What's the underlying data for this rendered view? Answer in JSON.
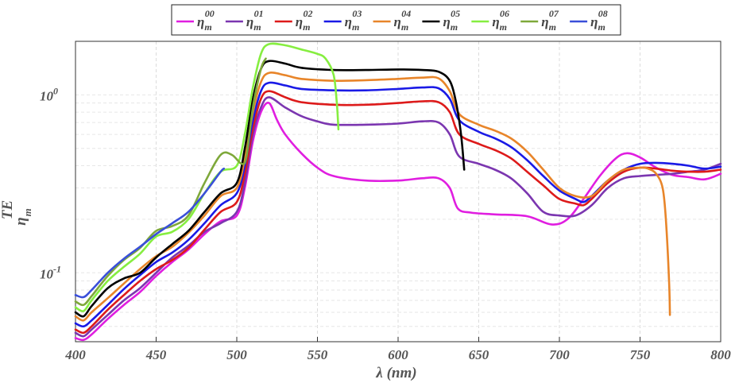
{
  "chart_data": {
    "type": "line",
    "title": "",
    "xlabel": "λ (nm)",
    "ylabel": {
      "base": "η",
      "sub": "m",
      "sup": "TE"
    },
    "x_ticks": [
      "400",
      "450",
      "500",
      "550",
      "600",
      "650",
      "700",
      "750",
      "800"
    ],
    "y_ticks": [
      {
        "base": "10",
        "exp": "-1",
        "value": 0.1
      },
      {
        "base": "10",
        "exp": "0",
        "value": 1
      }
    ],
    "xlim": [
      400,
      800
    ],
    "ylim": [
      0.041,
      2.0
    ],
    "yscale": "log",
    "grid": true,
    "legend_position": "top",
    "series": [
      {
        "name": "η_m^00",
        "label_base": "η",
        "label_sub": "m",
        "label_sup": "00",
        "color": "#e01ee0",
        "points": [
          [
            400,
            0.043
          ],
          [
            405,
            0.042
          ],
          [
            410,
            0.045
          ],
          [
            420,
            0.055
          ],
          [
            430,
            0.066
          ],
          [
            440,
            0.078
          ],
          [
            450,
            0.096
          ],
          [
            460,
            0.115
          ],
          [
            470,
            0.135
          ],
          [
            480,
            0.165
          ],
          [
            490,
            0.195
          ],
          [
            500,
            0.21
          ],
          [
            505,
            0.3
          ],
          [
            510,
            0.55
          ],
          [
            515,
            0.8
          ],
          [
            520,
            0.9
          ],
          [
            525,
            0.72
          ],
          [
            530,
            0.6
          ],
          [
            540,
            0.47
          ],
          [
            550,
            0.39
          ],
          [
            560,
            0.35
          ],
          [
            580,
            0.33
          ],
          [
            600,
            0.33
          ],
          [
            615,
            0.34
          ],
          [
            625,
            0.34
          ],
          [
            632,
            0.3
          ],
          [
            637,
            0.23
          ],
          [
            645,
            0.218
          ],
          [
            660,
            0.213
          ],
          [
            680,
            0.208
          ],
          [
            695,
            0.187
          ],
          [
            705,
            0.2
          ],
          [
            715,
            0.26
          ],
          [
            725,
            0.35
          ],
          [
            735,
            0.44
          ],
          [
            742,
            0.47
          ],
          [
            750,
            0.445
          ],
          [
            760,
            0.39
          ],
          [
            770,
            0.355
          ],
          [
            780,
            0.345
          ],
          [
            790,
            0.335
          ],
          [
            800,
            0.36
          ]
        ]
      },
      {
        "name": "η_m^01",
        "label_base": "η",
        "label_sub": "m",
        "label_sup": "01",
        "color": "#7b36b0",
        "points": [
          [
            400,
            0.046
          ],
          [
            405,
            0.044
          ],
          [
            410,
            0.048
          ],
          [
            420,
            0.058
          ],
          [
            430,
            0.07
          ],
          [
            440,
            0.082
          ],
          [
            450,
            0.1
          ],
          [
            460,
            0.122
          ],
          [
            470,
            0.142
          ],
          [
            480,
            0.17
          ],
          [
            490,
            0.19
          ],
          [
            500,
            0.22
          ],
          [
            505,
            0.32
          ],
          [
            510,
            0.6
          ],
          [
            515,
            0.85
          ],
          [
            520,
            0.97
          ],
          [
            530,
            0.85
          ],
          [
            540,
            0.76
          ],
          [
            550,
            0.71
          ],
          [
            560,
            0.68
          ],
          [
            580,
            0.68
          ],
          [
            600,
            0.69
          ],
          [
            615,
            0.71
          ],
          [
            625,
            0.7
          ],
          [
            632,
            0.6
          ],
          [
            638,
            0.45
          ],
          [
            650,
            0.41
          ],
          [
            660,
            0.38
          ],
          [
            670,
            0.34
          ],
          [
            680,
            0.28
          ],
          [
            690,
            0.22
          ],
          [
            700,
            0.21
          ],
          [
            710,
            0.21
          ],
          [
            720,
            0.24
          ],
          [
            730,
            0.3
          ],
          [
            740,
            0.34
          ],
          [
            750,
            0.35
          ],
          [
            760,
            0.355
          ],
          [
            770,
            0.36
          ],
          [
            780,
            0.37
          ],
          [
            790,
            0.38
          ],
          [
            800,
            0.41
          ]
        ]
      },
      {
        "name": "η_m^02",
        "label_base": "η",
        "label_sub": "m",
        "label_sup": "02",
        "color": "#dd1a1a",
        "points": [
          [
            400,
            0.048
          ],
          [
            405,
            0.046
          ],
          [
            410,
            0.05
          ],
          [
            420,
            0.062
          ],
          [
            430,
            0.075
          ],
          [
            440,
            0.09
          ],
          [
            450,
            0.105
          ],
          [
            460,
            0.118
          ],
          [
            470,
            0.138
          ],
          [
            480,
            0.175
          ],
          [
            490,
            0.22
          ],
          [
            500,
            0.25
          ],
          [
            505,
            0.36
          ],
          [
            510,
            0.65
          ],
          [
            515,
            0.95
          ],
          [
            520,
            1.05
          ],
          [
            530,
            0.97
          ],
          [
            540,
            0.91
          ],
          [
            560,
            0.88
          ],
          [
            580,
            0.88
          ],
          [
            600,
            0.9
          ],
          [
            615,
            0.92
          ],
          [
            625,
            0.91
          ],
          [
            632,
            0.8
          ],
          [
            638,
            0.6
          ],
          [
            650,
            0.53
          ],
          [
            660,
            0.49
          ],
          [
            670,
            0.44
          ],
          [
            680,
            0.37
          ],
          [
            690,
            0.31
          ],
          [
            700,
            0.26
          ],
          [
            710,
            0.245
          ],
          [
            715,
            0.24
          ],
          [
            720,
            0.26
          ],
          [
            730,
            0.32
          ],
          [
            740,
            0.37
          ],
          [
            750,
            0.39
          ],
          [
            760,
            0.385
          ],
          [
            770,
            0.375
          ],
          [
            780,
            0.37
          ],
          [
            790,
            0.37
          ],
          [
            800,
            0.38
          ]
        ]
      },
      {
        "name": "η_m^03",
        "label_base": "η",
        "label_sub": "m",
        "label_sup": "03",
        "color": "#1a1ae6",
        "points": [
          [
            400,
            0.052
          ],
          [
            405,
            0.05
          ],
          [
            410,
            0.054
          ],
          [
            420,
            0.066
          ],
          [
            430,
            0.081
          ],
          [
            440,
            0.097
          ],
          [
            450,
            0.115
          ],
          [
            460,
            0.13
          ],
          [
            470,
            0.153
          ],
          [
            480,
            0.19
          ],
          [
            490,
            0.24
          ],
          [
            500,
            0.28
          ],
          [
            505,
            0.4
          ],
          [
            510,
            0.72
          ],
          [
            515,
            1.05
          ],
          [
            520,
            1.17
          ],
          [
            530,
            1.13
          ],
          [
            540,
            1.08
          ],
          [
            560,
            1.06
          ],
          [
            580,
            1.06
          ],
          [
            600,
            1.08
          ],
          [
            615,
            1.1
          ],
          [
            625,
            1.09
          ],
          [
            632,
            0.95
          ],
          [
            638,
            0.72
          ],
          [
            650,
            0.62
          ],
          [
            660,
            0.57
          ],
          [
            670,
            0.51
          ],
          [
            680,
            0.43
          ],
          [
            690,
            0.35
          ],
          [
            700,
            0.29
          ],
          [
            710,
            0.26
          ],
          [
            715,
            0.25
          ],
          [
            720,
            0.27
          ],
          [
            730,
            0.33
          ],
          [
            740,
            0.38
          ],
          [
            750,
            0.41
          ],
          [
            760,
            0.415
          ],
          [
            770,
            0.41
          ],
          [
            780,
            0.4
          ],
          [
            790,
            0.385
          ],
          [
            800,
            0.395
          ]
        ]
      },
      {
        "name": "η_m^04",
        "label_base": "η",
        "label_sub": "m",
        "label_sup": "04",
        "color": "#e8852a",
        "points": [
          [
            400,
            0.057
          ],
          [
            405,
            0.054
          ],
          [
            410,
            0.06
          ],
          [
            420,
            0.072
          ],
          [
            430,
            0.087
          ],
          [
            440,
            0.105
          ],
          [
            450,
            0.124
          ],
          [
            460,
            0.14
          ],
          [
            470,
            0.168
          ],
          [
            480,
            0.21
          ],
          [
            490,
            0.27
          ],
          [
            500,
            0.3
          ],
          [
            505,
            0.44
          ],
          [
            510,
            0.8
          ],
          [
            515,
            1.18
          ],
          [
            520,
            1.33
          ],
          [
            530,
            1.29
          ],
          [
            540,
            1.23
          ],
          [
            560,
            1.2
          ],
          [
            580,
            1.21
          ],
          [
            600,
            1.23
          ],
          [
            615,
            1.25
          ],
          [
            625,
            1.24
          ],
          [
            632,
            1.05
          ],
          [
            638,
            0.78
          ],
          [
            650,
            0.68
          ],
          [
            660,
            0.63
          ],
          [
            670,
            0.57
          ],
          [
            680,
            0.48
          ],
          [
            690,
            0.38
          ],
          [
            700,
            0.3
          ],
          [
            710,
            0.27
          ],
          [
            720,
            0.27
          ],
          [
            730,
            0.33
          ],
          [
            740,
            0.38
          ],
          [
            750,
            0.39
          ],
          [
            755,
            0.385
          ],
          [
            760,
            0.36
          ],
          [
            764,
            0.3
          ],
          [
            766,
            0.2
          ],
          [
            768,
            0.09
          ],
          [
            768.5,
            0.058
          ]
        ]
      },
      {
        "name": "η_m^05",
        "label_base": "η",
        "label_sub": "m",
        "label_sup": "05",
        "color": "#000000",
        "points": [
          [
            400,
            0.06
          ],
          [
            405,
            0.057
          ],
          [
            410,
            0.065
          ],
          [
            420,
            0.082
          ],
          [
            430,
            0.093
          ],
          [
            440,
            0.1
          ],
          [
            450,
            0.122
          ],
          [
            460,
            0.145
          ],
          [
            470,
            0.172
          ],
          [
            480,
            0.22
          ],
          [
            490,
            0.28
          ],
          [
            500,
            0.32
          ],
          [
            505,
            0.5
          ],
          [
            510,
            0.95
          ],
          [
            515,
            1.4
          ],
          [
            520,
            1.55
          ],
          [
            530,
            1.5
          ],
          [
            540,
            1.42
          ],
          [
            560,
            1.38
          ],
          [
            580,
            1.38
          ],
          [
            600,
            1.39
          ],
          [
            615,
            1.38
          ],
          [
            625,
            1.35
          ],
          [
            632,
            1.2
          ],
          [
            636,
            0.9
          ],
          [
            639,
            0.6
          ],
          [
            641,
            0.38
          ]
        ]
      },
      {
        "name": "η_m^06",
        "label_base": "η",
        "label_sub": "m",
        "label_sup": "06",
        "color": "#86ee40",
        "points": [
          [
            400,
            0.064
          ],
          [
            405,
            0.061
          ],
          [
            410,
            0.07
          ],
          [
            420,
            0.09
          ],
          [
            430,
            0.108
          ],
          [
            440,
            0.128
          ],
          [
            450,
            0.16
          ],
          [
            460,
            0.17
          ],
          [
            470,
            0.2
          ],
          [
            480,
            0.28
          ],
          [
            490,
            0.37
          ],
          [
            500,
            0.4
          ],
          [
            505,
            0.6
          ],
          [
            510,
            1.1
          ],
          [
            515,
            1.7
          ],
          [
            520,
            1.93
          ],
          [
            530,
            1.9
          ],
          [
            540,
            1.8
          ],
          [
            550,
            1.7
          ],
          [
            555,
            1.6
          ],
          [
            560,
            1.3
          ],
          [
            562,
            0.9
          ],
          [
            563,
            0.64
          ]
        ]
      },
      {
        "name": "η_m^07",
        "label_base": "η",
        "label_sub": "m",
        "label_sup": "07",
        "color": "#7ea83a",
        "points": [
          [
            400,
            0.069
          ],
          [
            405,
            0.066
          ],
          [
            410,
            0.074
          ],
          [
            420,
            0.096
          ],
          [
            430,
            0.118
          ],
          [
            440,
            0.138
          ],
          [
            450,
            0.172
          ],
          [
            460,
            0.183
          ],
          [
            470,
            0.21
          ],
          [
            480,
            0.32
          ],
          [
            490,
            0.46
          ],
          [
            497,
            0.46
          ],
          [
            503,
            0.41
          ],
          [
            506,
            0.45
          ],
          [
            510,
            0.85
          ],
          [
            515,
            1.4
          ],
          [
            518,
            1.6
          ]
        ]
      },
      {
        "name": "η_m^08",
        "label_base": "η",
        "label_sub": "m",
        "label_sup": "08",
        "color": "#3a4fd9",
        "points": [
          [
            400,
            0.075
          ],
          [
            405,
            0.073
          ],
          [
            410,
            0.08
          ],
          [
            420,
            0.1
          ],
          [
            430,
            0.12
          ],
          [
            440,
            0.14
          ],
          [
            450,
            0.165
          ],
          [
            460,
            0.19
          ],
          [
            470,
            0.22
          ],
          [
            480,
            0.28
          ],
          [
            490,
            0.37
          ],
          [
            492,
            0.385
          ]
        ]
      }
    ]
  }
}
